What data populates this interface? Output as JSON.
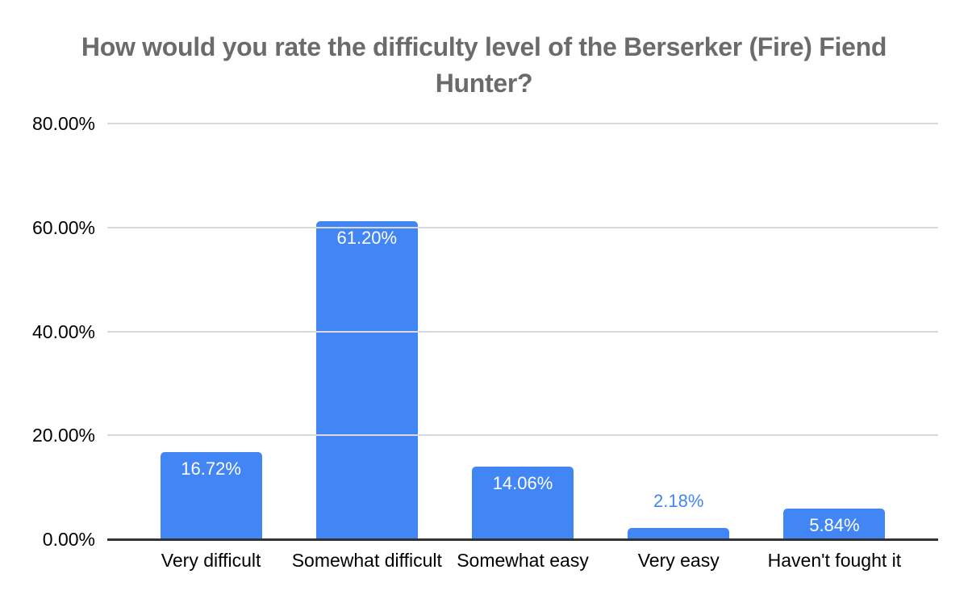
{
  "page": {
    "background": "#ffffff"
  },
  "chart_data": {
    "type": "bar",
    "title": "How would you rate the difficulty level of the Berserker (Fire) Fiend Hunter?",
    "categories": [
      "Very difficult",
      "Somewhat difficult",
      "Somewhat easy",
      "Very easy",
      "Haven't fought it"
    ],
    "values": [
      16.72,
      61.2,
      14.06,
      2.18,
      5.84
    ],
    "value_labels": [
      "16.72%",
      "61.20%",
      "14.06%",
      "2.18%",
      "5.84%"
    ],
    "y_ticks": [
      {
        "value": 80,
        "label": "80.00%"
      },
      {
        "value": 60,
        "label": "60.00%"
      },
      {
        "value": 40,
        "label": "40.00%"
      },
      {
        "value": 20,
        "label": "20.00%"
      },
      {
        "value": 0,
        "label": "0.00%"
      }
    ],
    "ylim": [
      0,
      80
    ],
    "xlabel": "",
    "ylabel": "",
    "grid": true,
    "legend": "none",
    "colors": {
      "bar": "#4285f4",
      "annotation_inside": "#ffffff",
      "annotation_outside": "#4285f4",
      "gridline": "#d9d9d9",
      "axis_line": "#333333",
      "axis_text": "#000000",
      "title": "#6b6b6b"
    }
  }
}
